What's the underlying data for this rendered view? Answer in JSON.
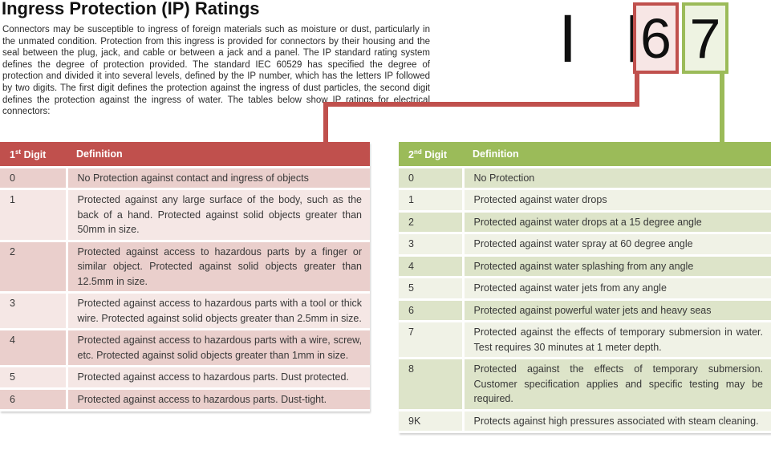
{
  "page": {
    "title": "Ingress Protection (IP) Ratings",
    "intro": "Connectors may be susceptible to ingress of foreign materials such as moisture or dust, particularly in the unmated condition. Protection from this ingress is provided for connectors by their housing and the seal between the plug, jack, and cable or between a jack and a panel. The IP standard rating system defines the degree of protection provided. The standard IEC 60529 has specified the degree of protection and divided it into several levels, defined by the IP number, which has the letters IP followed by two digits. The first digit defines the protection against the ingress of dust particles, the second digit defines the protection against the ingress of water. The tables below show IP ratings for electrical connectors:"
  },
  "ip_badge": {
    "prefix": "I P",
    "first_digit": "6",
    "second_digit": "7"
  },
  "colors": {
    "red_accent": "#c0504d",
    "red_row_dark": "#eacfcc",
    "red_row_light": "#f5e7e5",
    "red_box_fill": "#f7e6e5",
    "green_accent": "#9bbb59",
    "green_row_dark": "#dde4c9",
    "green_row_light": "#f0f2e6",
    "green_box_fill": "#eef3e2"
  },
  "first_digit_table": {
    "header": {
      "digit_num": "1",
      "digit_sup": "st",
      "digit_word": "Digit",
      "definition": "Definition"
    },
    "rows": [
      {
        "digit": "0",
        "definition": "No Protection against contact and ingress of objects"
      },
      {
        "digit": "1",
        "definition": "Protected against any large surface of the body, such as the back of a hand. Protected against solid objects greater than 50mm in size."
      },
      {
        "digit": "2",
        "definition": "Protected against access to hazardous parts by a finger or similar object. Protected against solid objects greater than 12.5mm in size."
      },
      {
        "digit": "3",
        "definition": "Protected against access to hazardous parts with a tool or thick wire. Protected against solid objects greater than 2.5mm in size."
      },
      {
        "digit": "4",
        "definition": "Protected against access to hazardous parts with a wire, screw, etc. Protected against solid objects greater than 1mm in size."
      },
      {
        "digit": "5",
        "definition": "Protected against access to hazardous parts. Dust protected."
      },
      {
        "digit": "6",
        "definition": "Protected against access to hazardous parts. Dust-tight."
      }
    ]
  },
  "second_digit_table": {
    "header": {
      "digit_num": "2",
      "digit_sup": "nd",
      "digit_word": "Digit",
      "definition": "Definition"
    },
    "rows": [
      {
        "digit": "0",
        "definition": "No Protection"
      },
      {
        "digit": "1",
        "definition": "Protected against water drops"
      },
      {
        "digit": "2",
        "definition": "Protected against water drops at a 15 degree angle"
      },
      {
        "digit": "3",
        "definition": "Protected against water spray at 60 degree angle"
      },
      {
        "digit": "4",
        "definition": "Protected against water splashing from any angle"
      },
      {
        "digit": "5",
        "definition": "Protected against water jets from any angle"
      },
      {
        "digit": "6",
        "definition": "Protected against powerful water jets and heavy seas"
      },
      {
        "digit": "7",
        "definition": "Protected against the effects of temporary submersion in water. Test requires 30 minutes at 1 meter depth."
      },
      {
        "digit": "8",
        "definition": "Protected against the effects of temporary submersion. Customer specification applies and specific testing may be required."
      },
      {
        "digit": "9K",
        "definition": "Protects against high pressures associated with steam cleaning."
      }
    ]
  }
}
